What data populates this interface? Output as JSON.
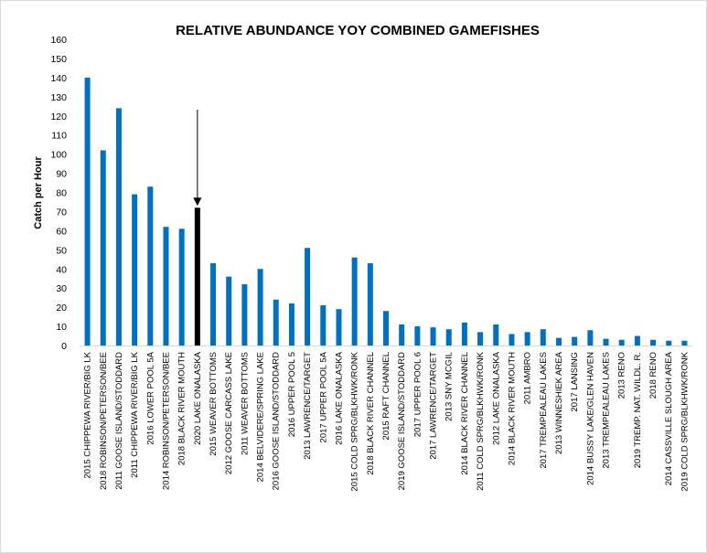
{
  "chart_data": {
    "type": "bar",
    "title": "RELATIVE ABUNDANCE YOY COMBINED GAMEFISHES",
    "xlabel": "",
    "ylabel": "Catch per Hour",
    "ylim": [
      0,
      160
    ],
    "yticks": [
      0,
      10,
      20,
      30,
      40,
      50,
      60,
      70,
      80,
      90,
      100,
      110,
      120,
      130,
      140,
      150,
      160
    ],
    "grid": false,
    "legend": "none",
    "colors": {
      "bar": "#0070C0",
      "highlight": "#000000",
      "axis": "#d9d9d9"
    },
    "highlight_category": "2020 LAKE ONALASKA",
    "annotation": "arrow-pointing-to-2020-lake-onalaska",
    "categories": [
      "2015 CHIPPEWA RIVER/BIG LK",
      "2018 ROBINSON/PETERSON/BEE",
      "2011 GOOSE ISLAND/STODDARD",
      "2011 CHIPPEWA RIVER/BIG LK",
      "2016 LOWER POOL 5A",
      "2014 ROBINSON/PETERSON/BEE",
      "2018 BLACK RIVER MOUTH",
      "2020 LAKE ONALASKA",
      "2015 WEAVER BOTTOMS",
      "2012 GOOSE CARCASS LAKE",
      "2011 WEAVER BOTTOMS",
      "2014 BELVIDERE/SPRING LAKE",
      "2016 GOOSE ISLAND/STODDARD",
      "2016 UPPER POOL 5",
      "2013 LAWRENCE/TARGET",
      "2017 UPPER POOL 5A",
      "2016 LAKE ONALASKA",
      "2015 COLD SPRG/BLKHWK/RONK",
      "2018 BLACK RIVER CHANNEL",
      "2015 RAFT CHANNEL",
      "2019 GOOSE ISLAND/STODDARD",
      "2017 UPPER POOL 6",
      "2017 LAWRENCE/TARGET",
      "2013 SNY MCGIL",
      "2014 BLACK RIVER CHANNEL",
      "2011 COLD SPRG/BLKHWK/RONK",
      "2012 LAKE ONALASKA",
      "2014 BLACK RIVER MOUTH",
      "2011 AMBRO",
      "2017 TREMPEALEAU LAKES",
      "2013 WINNESHIEK AREA",
      "2017 LANSING",
      "2014 BUSSY LAKE/GLEN HAVEN",
      "2013 TREMPEALEAU LAKES",
      "2013 RENO",
      "2019 TREMP. NAT. WILDL. R.",
      "2018 RENO",
      "2014 CASSVILLE SLOUGH AREA",
      "2019 COLD SPRG/BLKHWK/RONK"
    ],
    "values": [
      140,
      102,
      124,
      79,
      83,
      62,
      61,
      72,
      43,
      36,
      32,
      40,
      24,
      22,
      51,
      21,
      19,
      46,
      43,
      18,
      11,
      10,
      9.5,
      8.5,
      12,
      7,
      11,
      6,
      7,
      8.5,
      4,
      4.5,
      8,
      3.5,
      3,
      5,
      3,
      2.5,
      2.5
    ]
  }
}
